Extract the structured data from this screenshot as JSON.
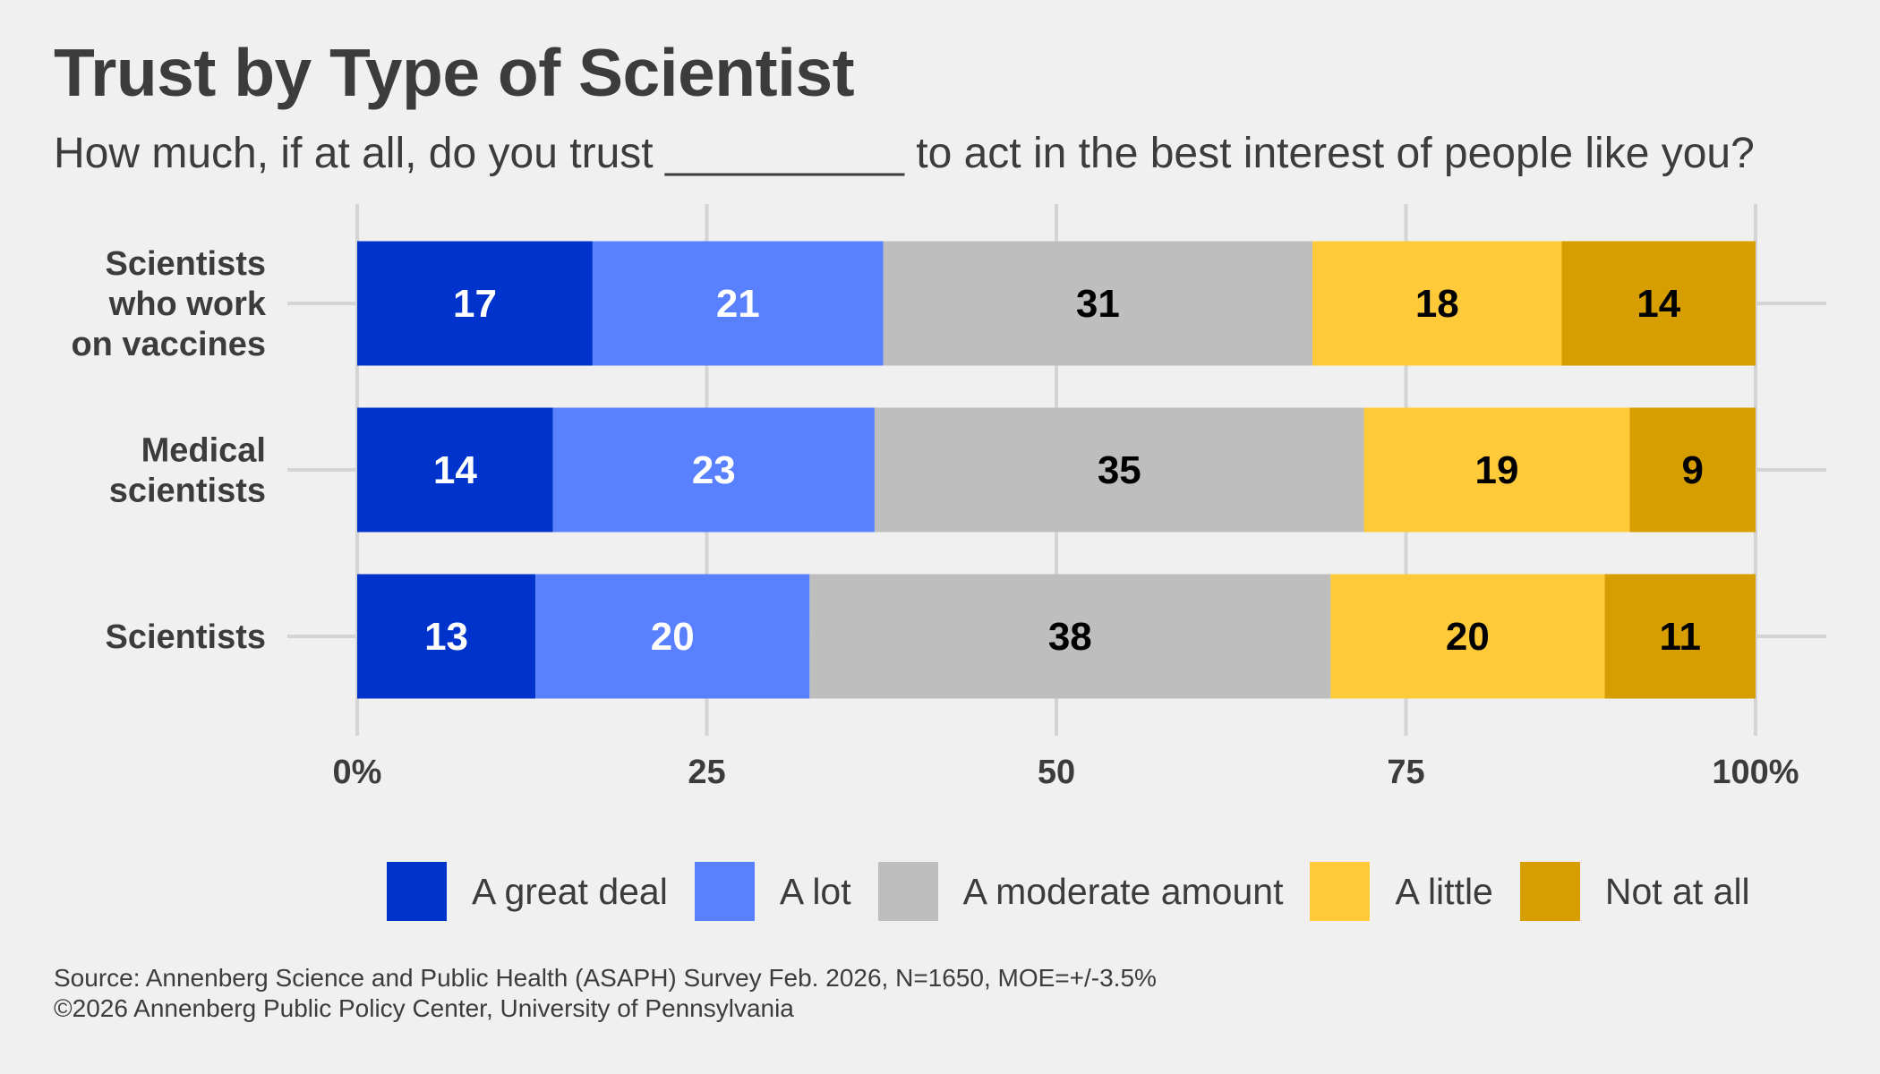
{
  "title": "Trust by Type of Scientist",
  "subtitle": "How much, if at all, do you trust __________ to act in the best interest of people like you?",
  "source": {
    "line1": "Source: Annenberg Science and Public Health (ASAPH) Survey Feb. 2026, N=1650, MOE=+/-3.5%",
    "line2": "©2026 Annenberg Public Policy Center, University of Pennsylvania"
  },
  "chart_data": {
    "type": "bar",
    "orientation": "horizontal",
    "stacked": true,
    "normalized": true,
    "title": "Trust by Type of Scientist",
    "subtitle": "How much, if at all, do you trust __________ to act in the best interest of people like you?",
    "xlabel": "",
    "ylabel": "",
    "xlim": [
      0,
      100
    ],
    "x_ticks": [
      0,
      25,
      50,
      75,
      100
    ],
    "x_tick_labels": [
      "0%",
      "25",
      "50",
      "75",
      "100%"
    ],
    "grid": true,
    "legend_position": "bottom",
    "categories": [
      "Scientists who work on vaccines",
      "Medical scientists",
      "Scientists"
    ],
    "category_label_lines": [
      [
        "Scientists",
        "who work",
        "on vaccines"
      ],
      [
        "Medical",
        "scientists"
      ],
      [
        "Scientists"
      ]
    ],
    "series": [
      {
        "name": "A great deal",
        "color": "#0033cc",
        "label_color": "#ffffff",
        "values": [
          17,
          14,
          13
        ]
      },
      {
        "name": "A lot",
        "color": "#5880ff",
        "label_color": "#ffffff",
        "values": [
          21,
          23,
          20
        ]
      },
      {
        "name": "A moderate amount",
        "color": "#bebebe",
        "label_color": "#000000",
        "values": [
          31,
          35,
          38
        ]
      },
      {
        "name": "A little",
        "color": "#ffca3a",
        "label_color": "#000000",
        "values": [
          18,
          19,
          20
        ]
      },
      {
        "name": "Not at all",
        "color": "#d69e00",
        "label_color": "#000000",
        "values": [
          14,
          9,
          11
        ]
      }
    ]
  }
}
